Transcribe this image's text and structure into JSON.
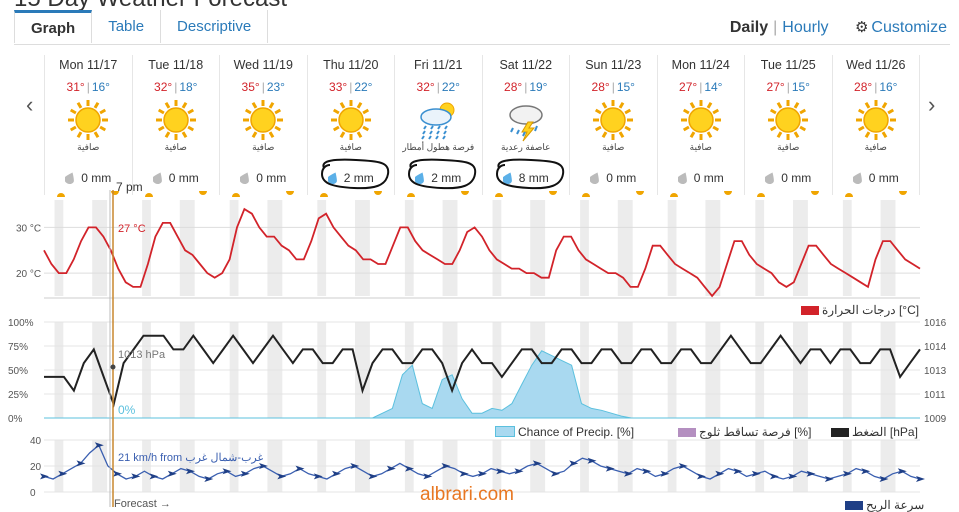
{
  "page": {
    "title": "15 Day Weather Forecast",
    "watermark": "albrari.com"
  },
  "tabs": [
    {
      "label": "Graph",
      "active": true
    },
    {
      "label": "Table"
    },
    {
      "label": "Descriptive"
    }
  ],
  "view": {
    "daily": "Daily",
    "sep": "|",
    "hourly": "Hourly",
    "customize": "Customize"
  },
  "days": [
    {
      "name": "Mon 11/17",
      "hi": "31°",
      "lo": "16°",
      "icon": "sun-icon",
      "desc": "صافية",
      "precip": "0 mm",
      "drop": "gray"
    },
    {
      "name": "Tue 11/18",
      "hi": "32°",
      "lo": "18°",
      "icon": "sun-icon",
      "desc": "صافية",
      "precip": "0 mm",
      "drop": "gray"
    },
    {
      "name": "Wed 11/19",
      "hi": "35°",
      "lo": "23°",
      "icon": "sun-icon",
      "desc": "صافية",
      "precip": "0 mm",
      "drop": "gray"
    },
    {
      "name": "Thu 11/20",
      "hi": "33°",
      "lo": "22°",
      "icon": "sun-icon",
      "desc": "صافية",
      "precip": "2 mm",
      "drop": "blue",
      "circled": true
    },
    {
      "name": "Fri 11/21",
      "hi": "32°",
      "lo": "22°",
      "icon": "rain-sun-icon",
      "desc": "فرصة هطول أمطار",
      "precip": "2 mm",
      "drop": "blue",
      "circled": true
    },
    {
      "name": "Sat 11/22",
      "hi": "28°",
      "lo": "19°",
      "icon": "thunder-icon",
      "desc": "عاصفة رعدية",
      "precip": "8 mm",
      "drop": "blue",
      "circled": true
    },
    {
      "name": "Sun 11/23",
      "hi": "28°",
      "lo": "15°",
      "icon": "sun-icon",
      "desc": "صافية",
      "precip": "0 mm",
      "drop": "gray"
    },
    {
      "name": "Mon 11/24",
      "hi": "27°",
      "lo": "14°",
      "icon": "sun-icon",
      "desc": "صافية",
      "precip": "0 mm",
      "drop": "gray"
    },
    {
      "name": "Tue 11/25",
      "hi": "27°",
      "lo": "15°",
      "icon": "sun-icon",
      "desc": "صافية",
      "precip": "0 mm",
      "drop": "gray"
    },
    {
      "name": "Wed 11/26",
      "hi": "28°",
      "lo": "16°",
      "icon": "sun-icon",
      "desc": "صافية",
      "precip": "0 mm",
      "drop": "gray"
    }
  ],
  "now": {
    "time": "7 pm",
    "temp": "27 °C",
    "pressure": "1013 hPa",
    "precip": "0%",
    "wind": "21 km/h from",
    "wind_dir": "غرب-شمال غرب",
    "forecast": "Forecast →"
  },
  "colors": {
    "accent": "#2a7ab9",
    "temp": "#d2232a",
    "pressure": "#222222",
    "precip": "#5bc0de",
    "wind": "#1f3f86",
    "nowline": "#c9872e"
  },
  "chart_data": [
    {
      "type": "line",
      "name": "temperature",
      "yticks": [
        "30 °C",
        "20 °C"
      ],
      "ylim": [
        15,
        36
      ],
      "legend": "درجات الحرارة [°C]",
      "values": [
        25,
        22,
        20,
        20,
        23,
        27,
        30,
        30,
        28,
        25,
        21,
        18,
        17,
        17,
        22,
        28,
        31,
        31,
        28,
        25,
        24,
        22,
        20,
        19,
        20,
        23,
        30,
        34,
        33,
        30,
        28,
        28,
        26,
        25,
        23,
        23,
        27,
        32,
        33,
        30,
        28,
        26,
        25,
        23,
        23,
        22,
        22,
        26,
        30,
        30,
        27,
        25,
        24,
        23,
        22,
        22,
        25,
        29,
        30,
        28,
        25,
        23,
        22,
        21,
        21,
        20,
        20,
        19,
        19,
        25,
        28,
        28,
        25,
        23,
        22,
        21,
        20,
        20,
        19,
        17,
        17,
        21,
        26,
        26,
        24,
        22,
        21,
        20,
        19,
        17,
        15,
        17,
        22,
        27,
        27,
        24,
        22,
        21,
        20,
        18,
        17,
        18,
        22,
        26,
        26,
        24,
        22,
        21,
        20,
        19,
        18,
        17,
        23,
        27,
        27,
        25,
        23,
        22,
        21
      ]
    },
    {
      "type": "area+line",
      "name": "precip-pressure",
      "yticks_left": [
        "100%",
        "75%",
        "50%",
        "25%",
        "0%"
      ],
      "yticks_right": [
        "1016",
        "1014",
        "1013",
        "1011",
        "1009"
      ],
      "legend": [
        {
          "label": "Chance of Precip. [%]",
          "color": "#a9d9f0"
        },
        {
          "label": "فرصة تساقط ثلوج [%]",
          "color": "#b48fc0"
        },
        {
          "label": "الضغط [hPa]",
          "color": "#222222"
        }
      ],
      "pressure": [
        1012,
        1012,
        1012,
        1011,
        1013,
        1014,
        1012,
        1010,
        1013,
        1014,
        1015,
        1015,
        1015,
        1014,
        1014,
        1015,
        1014,
        1013,
        1014,
        1015,
        1014,
        1013,
        1014,
        1015,
        1014,
        1013,
        1014,
        1014,
        1013,
        1013,
        1014,
        1014,
        1011,
        1013,
        1014,
        1014,
        1013,
        1013,
        1014,
        1014,
        1013,
        1011,
        1013,
        1014,
        1013,
        1013,
        1012,
        1013,
        1014,
        1014,
        1013,
        1013,
        1014,
        1014,
        1013,
        1013,
        1014,
        1014,
        1013,
        1013,
        1014,
        1014,
        1013,
        1013,
        1014,
        1014,
        1013,
        1013,
        1014,
        1015,
        1014,
        1013,
        1013,
        1014,
        1015,
        1014,
        1013,
        1014,
        1014,
        1013,
        1014,
        1014,
        1013,
        1013,
        1014,
        1014,
        1012,
        1013,
        1014
      ],
      "precip": [
        0,
        0,
        0,
        0,
        0,
        0,
        0,
        0,
        0,
        0,
        0,
        0,
        0,
        0,
        0,
        0,
        0,
        0,
        0,
        0,
        0,
        0,
        0,
        0,
        0,
        0,
        0,
        0,
        0,
        0,
        0,
        0,
        0,
        0,
        5,
        10,
        45,
        55,
        15,
        10,
        40,
        45,
        20,
        5,
        5,
        10,
        8,
        15,
        35,
        55,
        70,
        65,
        60,
        55,
        15,
        10,
        8,
        5,
        2,
        0,
        0,
        0,
        0,
        0,
        0,
        0,
        0,
        0,
        0,
        0,
        0,
        0,
        0,
        0,
        0,
        0,
        0,
        0,
        0,
        0,
        0,
        0,
        0,
        0,
        0,
        0,
        0,
        0,
        0
      ]
    },
    {
      "type": "line",
      "name": "wind",
      "yticks": [
        "40",
        "20",
        "0"
      ],
      "ylim": [
        0,
        40
      ],
      "legend": "سرعة الريح",
      "values": [
        12,
        10,
        14,
        18,
        22,
        30,
        36,
        20,
        14,
        10,
        12,
        16,
        12,
        10,
        14,
        18,
        16,
        12,
        10,
        14,
        16,
        12,
        14,
        18,
        20,
        16,
        12,
        14,
        18,
        14,
        12,
        10,
        14,
        18,
        20,
        16,
        12,
        14,
        18,
        22,
        18,
        14,
        12,
        16,
        20,
        18,
        14,
        12,
        14,
        18,
        16,
        14,
        16,
        20,
        22,
        18,
        14,
        16,
        22,
        26,
        24,
        20,
        18,
        16,
        14,
        18,
        16,
        12,
        14,
        18,
        20,
        16,
        12,
        10,
        14,
        18,
        16,
        12,
        14,
        16,
        12,
        10,
        12,
        16,
        14,
        12,
        10,
        12,
        14,
        18,
        16,
        12,
        10,
        14,
        16,
        12,
        10
      ]
    }
  ]
}
